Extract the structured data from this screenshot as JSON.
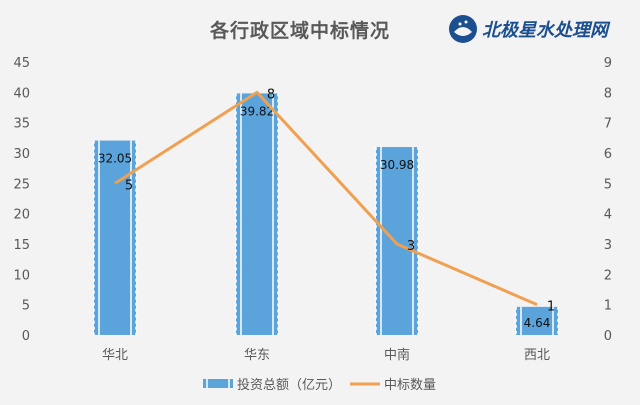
{
  "chart_data": {
    "type": "bar",
    "title": "各行政区域中标情况",
    "logo_text": "北极星水处理网",
    "categories": [
      "华北",
      "华东",
      "中南",
      "西北"
    ],
    "series": [
      {
        "name": "投资总额（亿元）",
        "type": "bar",
        "axis": "left",
        "values": [
          32.05,
          39.82,
          30.98,
          4.64
        ],
        "color": "#5ba3db"
      },
      {
        "name": "中标数量",
        "type": "line",
        "axis": "right",
        "values": [
          5,
          8,
          3,
          1
        ],
        "color": "#f0a050"
      }
    ],
    "y_left": {
      "min": 0,
      "max": 45,
      "ticks": [
        0,
        5,
        10,
        15,
        20,
        25,
        30,
        35,
        40,
        45
      ]
    },
    "y_right": {
      "min": 0,
      "max": 9,
      "ticks": [
        0,
        1,
        2,
        3,
        4,
        5,
        6,
        7,
        8,
        9
      ]
    },
    "grid": false,
    "legend": "bottom"
  }
}
